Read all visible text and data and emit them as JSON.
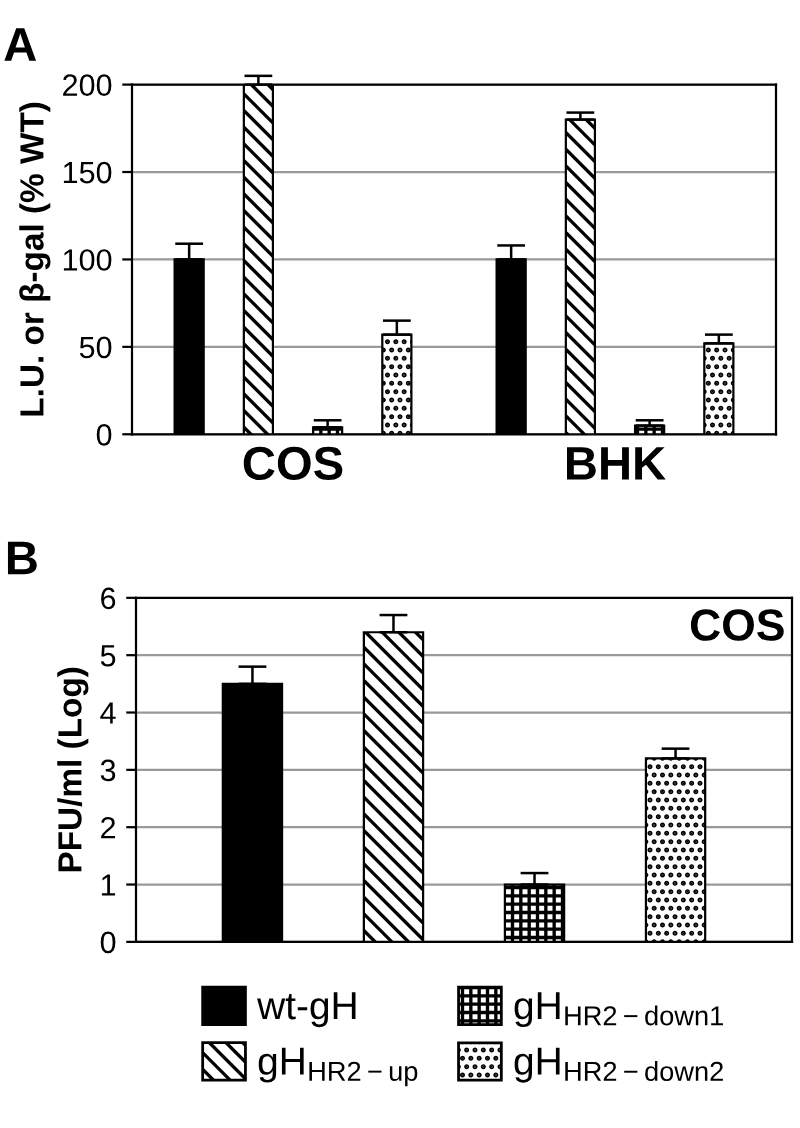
{
  "chart_data": [
    {
      "type": "bar",
      "title": "A",
      "ylabel": "L.U. or β-gal (% WT)",
      "categories": [
        "COS",
        "BHK"
      ],
      "ylim": [
        0,
        200
      ],
      "yticks": [
        0,
        50,
        100,
        150,
        200
      ],
      "grid": "y",
      "series": [
        {
          "color": "#000000",
          "values": [
            100,
            100
          ],
          "errors": [
            9,
            8
          ]
        },
        {
          "color": "#000000",
          "values": [
            200,
            180
          ],
          "errors": [
            5,
            4
          ]
        },
        {
          "color": "#000000",
          "values": [
            4,
            5
          ],
          "errors": [
            4,
            3
          ]
        },
        {
          "color": "#000000",
          "values": [
            57,
            52
          ],
          "errors": [
            8,
            5
          ]
        }
      ]
    },
    {
      "type": "bar",
      "title": "B",
      "ylabel": "PFU/ml (Log)",
      "categories": [
        null
      ],
      "ylim": [
        0,
        6
      ],
      "yticks": [
        0,
        1,
        2,
        3,
        4,
        5,
        6
      ],
      "grid": "y",
      "legend": "bottom",
      "annotations": [
        "COS"
      ],
      "series": [
        {
          "name": "wt-gH",
          "color": "#000000",
          "values": [
            4.5
          ],
          "errors": [
            0.3
          ]
        },
        {
          "name": "gH$_{HR2−up}$",
          "color": "#000000",
          "values": [
            5.4
          ],
          "errors": [
            0.3
          ]
        },
        {
          "name": "gH$_{HR2−down1}$",
          "color": "#000000",
          "values": [
            1.0
          ],
          "errors": [
            0.2
          ]
        },
        {
          "name": "gH$_{HR2−down2}$",
          "color": "#000000",
          "values": [
            3.2
          ],
          "errors": [
            0.17
          ]
        }
      ]
    }
  ]
}
